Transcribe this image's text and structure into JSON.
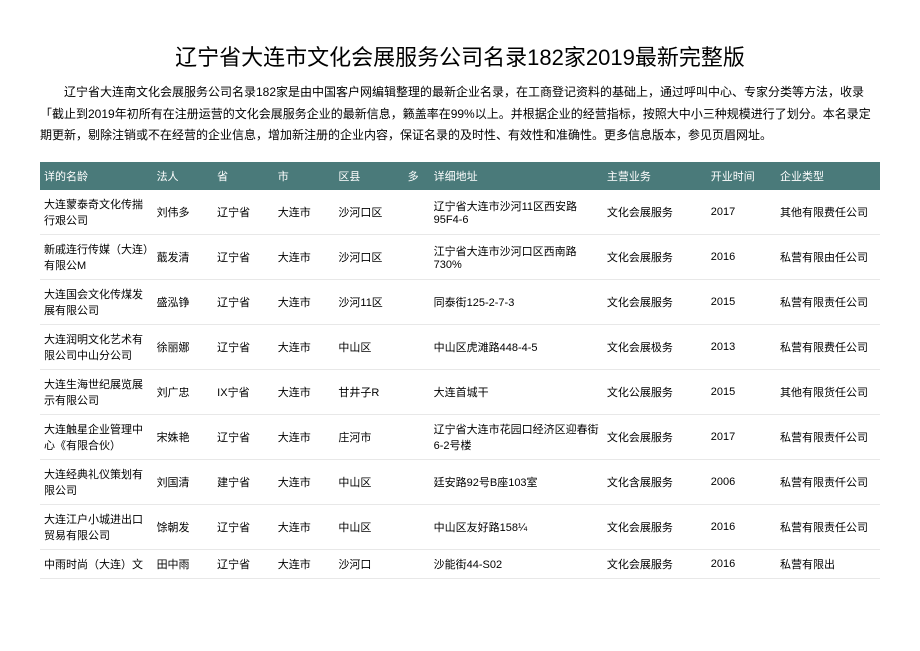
{
  "title": "辽宁省大连市文化会展服务公司名录182家2019最新完整版",
  "description": "辽宁省大连南文化会展服务公司名录182家是由中国客户网编辑整理的最新企业名录，在工商登记资料的基础上，通过呼叫中心、专家分类等方法，收录「截止到2019年初所有在注册运营的文化会展服务企业的最新信息，籁盖率在99%以上。并根据企业的经营指标，按照大中小三种规模进行了划分。本名录定期更新，剔除注销或不在经营的企业信息，增加新注册的企业内容，保证名录的及时性、有效性和准确性。更多信息版本，参见页眉网址。",
  "headers": {
    "name": "详的名龄",
    "person": "法人",
    "province": "省",
    "city": "市",
    "district": "区县",
    "more": "多",
    "address": "详细地址",
    "business": "主营业务",
    "time": "开业时间",
    "type": "企业类型"
  },
  "rows": [
    {
      "name": "大连蒙泰奇文化传揣行艰公司",
      "person": "刘伟多",
      "province": "辽宁省",
      "city": "大连市",
      "district": "沙河口区",
      "more": "",
      "address": "辽宁省大连市沙河11区西安路95F4-6",
      "business": "文化会展服务",
      "time": "2017",
      "type": "其他有限费任公司"
    },
    {
      "name": "新戚连行传媒（大连）有限公M",
      "person": "蕺发清",
      "province": "辽宁省",
      "city": "大连市",
      "district": "沙河口区",
      "more": "",
      "address": "江宁省大连市沙河口区西南路730%",
      "business": "文化会展服务",
      "time": "2016",
      "type": "私营有限由任公司"
    },
    {
      "name": "大连国会文化传煤发展有限公司",
      "person": "盛泓铮",
      "province": "辽宁省",
      "city": "大连市",
      "district": "沙河11区",
      "more": "",
      "address": "同泰街125-2-7-3",
      "business": "文化会展服务",
      "time": "2015",
      "type": "私营有限责任公司"
    },
    {
      "name": "大连润明文化艺术有限公司中山分公司",
      "person": "徐丽娜",
      "province": "辽宁省",
      "city": "大连市",
      "district": "中山区",
      "more": "",
      "address": "中山区虎滩路448-4-5",
      "business": "文化会展极务",
      "time": "2013",
      "type": "私营有限费任公司"
    },
    {
      "name": "大连生海世纪展览展示有限公司",
      "person": "刘广忠",
      "province": "IX宁省",
      "city": "大连市",
      "district": "甘井子R",
      "more": "",
      "address": "大连首城干",
      "business": "文化公展服务",
      "time": "2015",
      "type": "其他有限货任公司"
    },
    {
      "name": "大连触星企业管理中心《有限合伙）",
      "person": "宋姝艳",
      "province": "辽宁省",
      "city": "大连市",
      "district": "庄河市",
      "more": "",
      "address": "辽宁省大连市花园口经济区迎春街6-2号楼",
      "business": "文化会展服务",
      "time": "2017",
      "type": "私营有限责仟公司"
    },
    {
      "name": "大连经典礼仪策划有限公司",
      "person": "刘国清",
      "province": "建宁省",
      "city": "大连市",
      "district": "中山区",
      "more": "",
      "address": "廷安路92号B座103室",
      "business": "文化含展服务",
      "time": "2006",
      "type": "私营有限责仟公司",
      "typeSuffix": ""
    },
    {
      "name": "大连江户小城进出口贸易有限公司",
      "person": "馀朝发",
      "province": "辽宁省",
      "city": "大连市",
      "district": "中山区",
      "more": "",
      "address": "中山区友好路158¼",
      "business": "文化会展服务",
      "time": "2016",
      "type": "私营有限责任公司"
    },
    {
      "name": "中雨时尚（大连）文",
      "person": "田中雨",
      "province": "辽宁省",
      "city": "大连市",
      "district": "沙河口",
      "more": "",
      "address": "沙能街44-S02",
      "business": "文化会展服务",
      "time": "2016",
      "type": "私营有限出"
    }
  ],
  "colors": {
    "headerBg": "#4a7a7a",
    "headerText": "#ffffff",
    "bodyText": "#000000",
    "rowBorder": "#e8e8e8"
  }
}
